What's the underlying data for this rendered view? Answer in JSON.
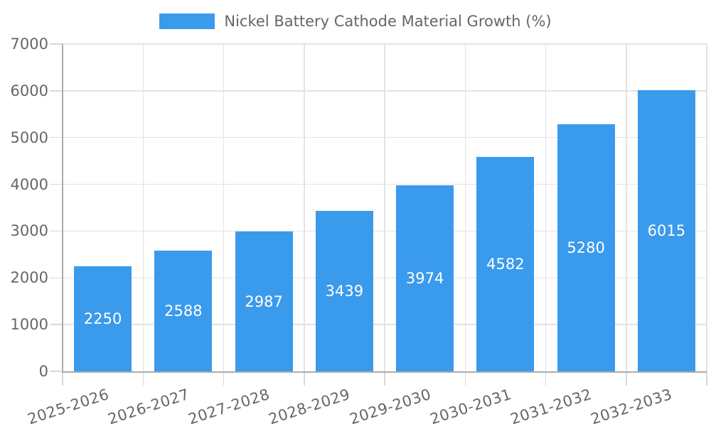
{
  "legend": {
    "label": "Nickel Battery Cathode Material Growth (%)"
  },
  "chart_data": {
    "type": "bar",
    "title": "Nickel Battery Cathode Material Growth (%)",
    "categories": [
      "2025-2026",
      "2026-2027",
      "2027-2028",
      "2028-2029",
      "2029-2030",
      "2030-2031",
      "2031-2032",
      "2032-2033"
    ],
    "values": [
      2250,
      2588,
      2987,
      3439,
      3974,
      4582,
      5280,
      6015
    ],
    "bar_value_labels": [
      "2250",
      "2588",
      "2987",
      "3439",
      "3974",
      "4582",
      "5280",
      "6015"
    ],
    "xlabel": "",
    "ylabel": "",
    "ylim": [
      0,
      7000
    ],
    "ytick_step": 1000,
    "yticks": [
      "0",
      "1000",
      "2000",
      "3000",
      "4000",
      "5000",
      "6000",
      "7000"
    ],
    "grid": true,
    "legend_position": "top",
    "colors": {
      "bar": "#3A9AEC",
      "bar_value_text": "#ffffff",
      "axis_text": "#666666",
      "grid_line": "#e3e3e3",
      "tick_line": "#d8d8d8",
      "axis_line": "#ababab"
    }
  }
}
